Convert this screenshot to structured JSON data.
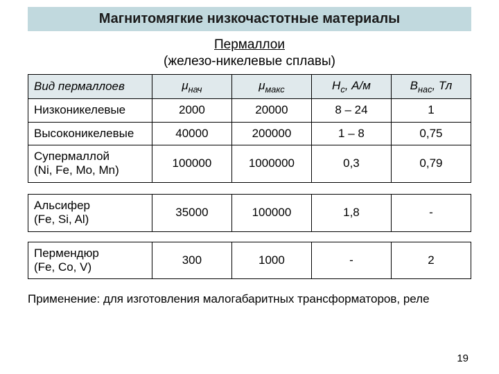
{
  "colors": {
    "title_bg": "#c1d9de",
    "header_bg": "#e0e9ec",
    "border": "#000000",
    "text": "#000000"
  },
  "title": "Магнитомягкие низкочастотные материалы",
  "subtitle_line1": "Пермаллои",
  "subtitle_line2": "(железо-никелевые сплавы)",
  "headers": {
    "col1": "Вид пермаллоев",
    "col2_sym": "μ",
    "col2_sub": "нач",
    "col3_sym": "μ",
    "col3_sub": "макс",
    "col4_sym": "H",
    "col4_sub": "c",
    "col4_unit": ", А/м",
    "col5_sym": "B",
    "col5_sub": "нас",
    "col5_unit": ", Тл"
  },
  "main_rows": [
    {
      "name": "Низконикелевые",
      "mu_init": "2000",
      "mu_max": "20000",
      "hc": "8 – 24",
      "bnas": "1"
    },
    {
      "name": "Высоконикелевые",
      "mu_init": "40000",
      "mu_max": "200000",
      "hc": "1 – 8",
      "bnas": "0,75"
    },
    {
      "name": "Супермаллой\n(Ni, Fe, Mo, Mn)",
      "mu_init": "100000",
      "mu_max": "1000000",
      "hc": "0,3",
      "bnas": "0,79"
    }
  ],
  "extra_rows": [
    {
      "name": "Альсифер\n(Fe, Si, Al)",
      "mu_init": "35000",
      "mu_max": "100000",
      "hc": "1,8",
      "bnas": "-"
    },
    {
      "name": "Пермендюр\n(Fe, Co, V)",
      "mu_init": "300",
      "mu_max": "1000",
      "hc": "-",
      "bnas": "2"
    }
  ],
  "footer": "Применение: для изготовления малогабаритных трансформаторов, реле",
  "page_number": "19"
}
